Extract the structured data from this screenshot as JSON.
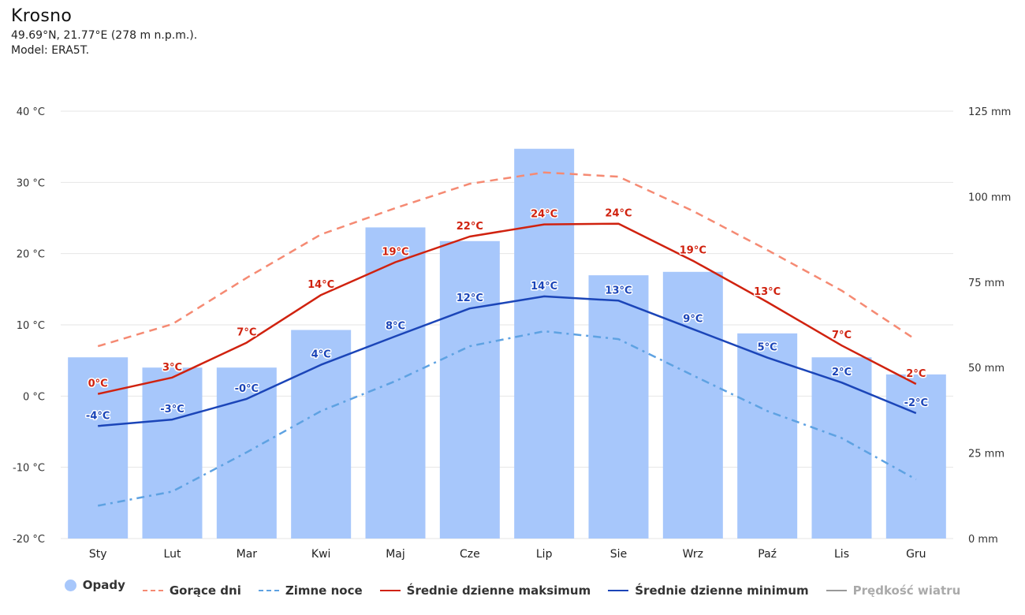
{
  "header": {
    "title": "Krosno",
    "coords": "49.69°N, 21.77°E (278 m n.p.m.).",
    "model": "Model: ERA5T."
  },
  "colors": {
    "precip": "#a7c7fb",
    "hot": "#f58a73",
    "cold": "#5ea2e2",
    "max": "#d0220f",
    "min": "#1b45b8",
    "wind": "#999999",
    "grid": "#e6e6e6"
  },
  "legend": [
    {
      "label": "Opady",
      "key": "precip",
      "kind": "dot",
      "enabled": true
    },
    {
      "label": "Gorące dni",
      "key": "hot",
      "kind": "dash",
      "enabled": true
    },
    {
      "label": "Zimne noce",
      "key": "cold",
      "kind": "dashdot",
      "enabled": true
    },
    {
      "label": "Średnie dzienne maksimum",
      "key": "max",
      "kind": "solid",
      "enabled": true
    },
    {
      "label": "Średnie dzienne minimum",
      "key": "min",
      "kind": "solid",
      "enabled": true
    },
    {
      "label": "Prędkość wiatru",
      "key": "wind",
      "kind": "solid",
      "enabled": false
    }
  ],
  "chart_data": {
    "type": "bar+line",
    "categories": [
      "Sty",
      "Lut",
      "Mar",
      "Kwi",
      "Maj",
      "Cze",
      "Lip",
      "Sie",
      "Wrz",
      "Paź",
      "Lis",
      "Gru"
    ],
    "y_left": {
      "min": -20,
      "max": 40,
      "step": 10,
      "unit": "°C",
      "ticks": [
        "40 °C",
        "30 °C",
        "20 °C",
        "10 °C",
        "0 °C",
        "-10 °C",
        "-20 °C"
      ]
    },
    "y_right": {
      "min": 0,
      "max": 125,
      "step": 25,
      "unit": "mm",
      "ticks": [
        "125 mm",
        "100 mm",
        "75 mm",
        "50 mm",
        "25 mm",
        "0 mm"
      ]
    },
    "series": [
      {
        "name": "Opady",
        "type": "bar",
        "axis": "right",
        "values": [
          53,
          50,
          50,
          61,
          91,
          87,
          114,
          77,
          78,
          60,
          53,
          48
        ]
      },
      {
        "name": "Gorące dni",
        "type": "line",
        "dash": "dash",
        "axis": "left",
        "values": [
          7.0,
          10.1,
          16.6,
          22.7,
          26.4,
          29.8,
          31.4,
          30.8,
          26.0,
          20.5,
          14.8,
          7.9
        ]
      },
      {
        "name": "Zimne noce",
        "type": "line",
        "dash": "dashdot",
        "axis": "left",
        "values": [
          -15.4,
          -13.4,
          -7.9,
          -2.1,
          2.1,
          7.0,
          9.1,
          8.0,
          2.9,
          -2.1,
          -5.9,
          -11.7
        ]
      },
      {
        "name": "Średnie dzienne maksimum",
        "type": "line",
        "axis": "left",
        "values": [
          0.3,
          2.6,
          7.5,
          14.2,
          18.8,
          22.4,
          24.1,
          24.2,
          19.0,
          13.2,
          7.1,
          1.7
        ],
        "labels": [
          "0°C",
          "3°C",
          "7°C",
          "14°C",
          "19°C",
          "22°C",
          "24°C",
          "24°C",
          "19°C",
          "13°C",
          "7°C",
          "2°C"
        ]
      },
      {
        "name": "Średnie dzienne minimum",
        "type": "line",
        "axis": "left",
        "values": [
          -4.2,
          -3.3,
          -0.4,
          4.4,
          8.4,
          12.3,
          14.0,
          13.4,
          9.4,
          5.4,
          1.9,
          -2.4
        ],
        "labels": [
          "-4°C",
          "-3°C",
          "-0°C",
          "4°C",
          "8°C",
          "12°C",
          "14°C",
          "13°C",
          "9°C",
          "5°C",
          "2°C",
          "-2°C"
        ]
      }
    ]
  }
}
